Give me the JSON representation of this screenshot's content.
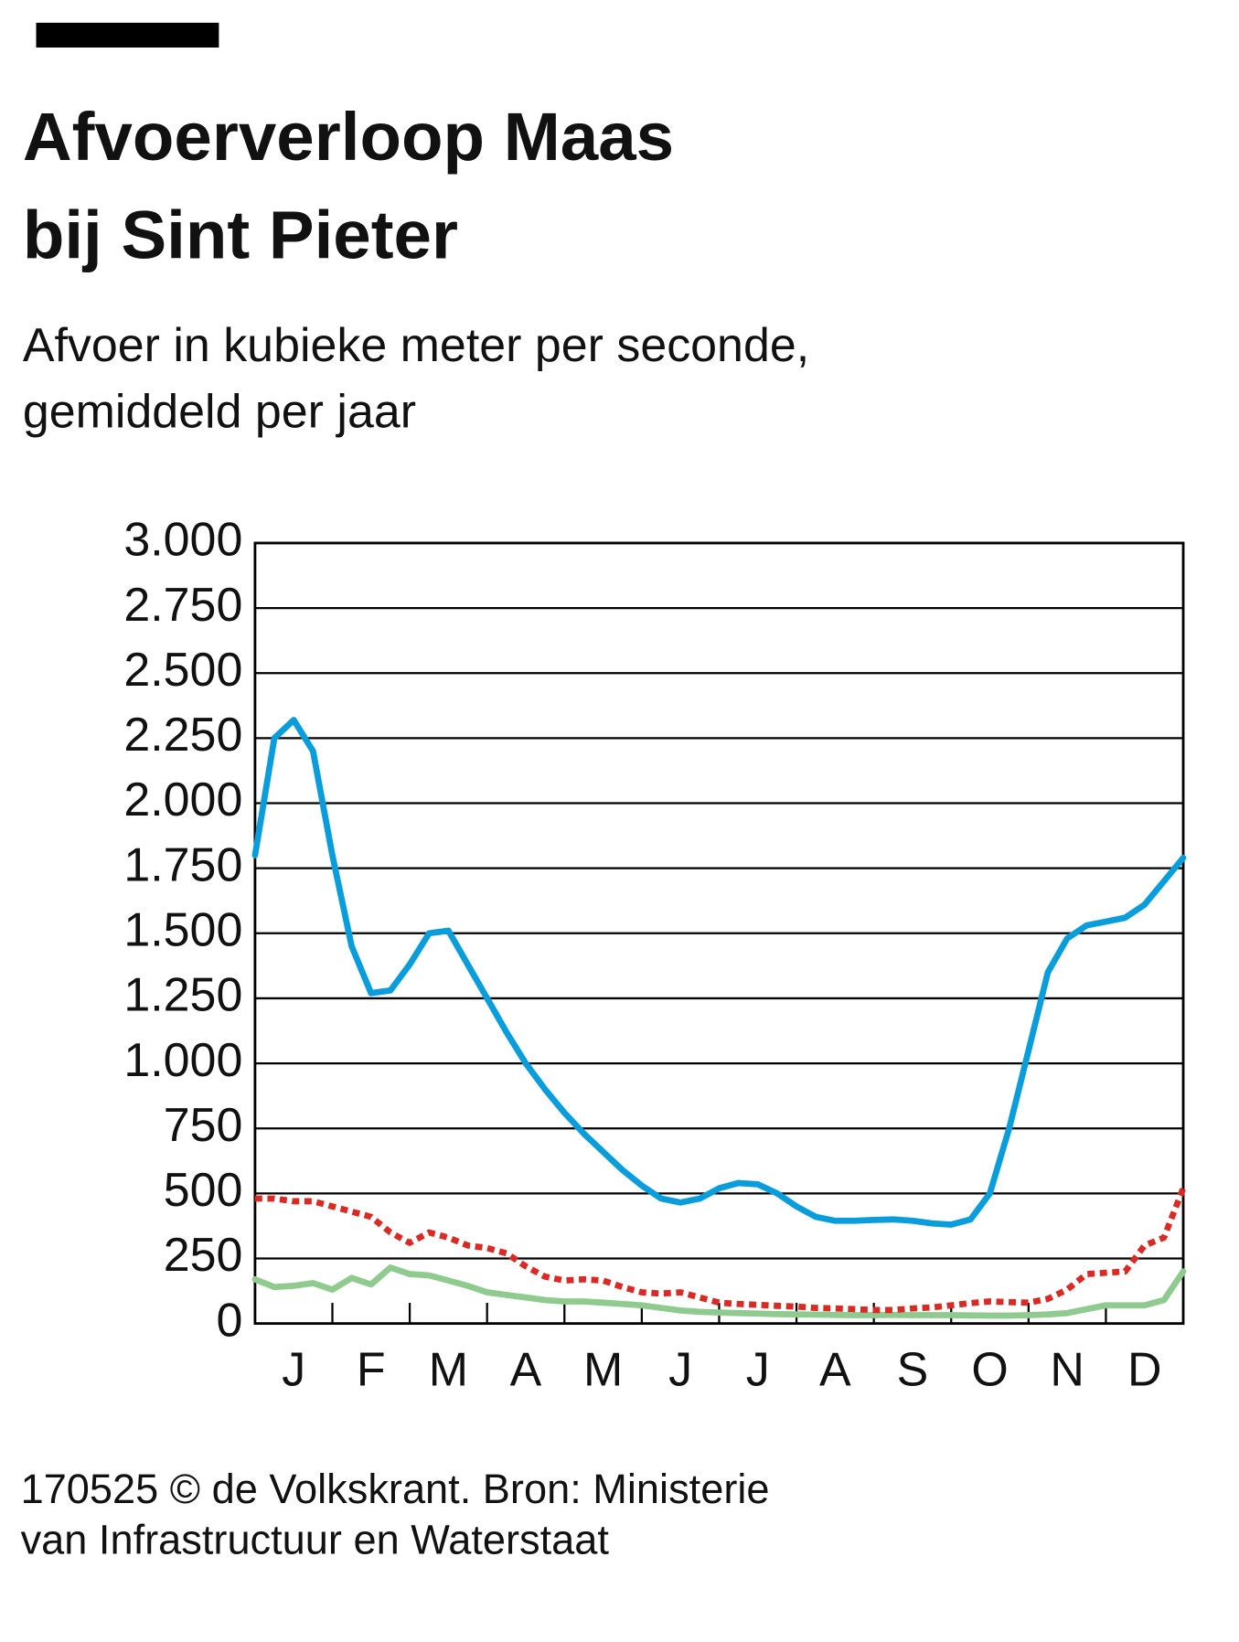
{
  "chart_data": {
    "type": "line",
    "title": [
      "Afvoerverloop Maas",
      "bij Sint Pieter"
    ],
    "subtitle": [
      "Afvoer in kubieke meter per seconde,",
      "gemiddeld per jaar"
    ],
    "source": [
      "170525 © de Volkskrant. Bron: Ministerie",
      "van Infrastructuur en Waterstaat"
    ],
    "categories": [
      null,
      null,
      "J",
      null,
      null,
      null,
      "F",
      null,
      null,
      null,
      "M",
      null,
      null,
      null,
      "A",
      null,
      null,
      null,
      "M",
      null,
      null,
      null,
      "J",
      null,
      null,
      null,
      "J",
      null,
      null,
      null,
      "A",
      null,
      null,
      null,
      "S",
      null,
      null,
      null,
      "O",
      null,
      null,
      null,
      "N",
      null,
      null,
      null,
      "D",
      null,
      null
    ],
    "series": [
      {
        "color": "#0a9ddc",
        "dash": false,
        "values": [
          1800,
          2250,
          2320,
          2200,
          1800,
          1450,
          1270,
          1280,
          1380,
          1500,
          1510,
          1380,
          1250,
          1120,
          1000,
          900,
          810,
          730,
          660,
          590,
          530,
          480,
          465,
          480,
          520,
          540,
          535,
          500,
          450,
          410,
          395,
          395,
          398,
          400,
          395,
          385,
          380,
          400,
          500,
          750,
          1050,
          1350,
          1480,
          1530,
          1545,
          1560,
          1610,
          1700,
          1790
        ]
      },
      {
        "color": "#d92a25",
        "dash": true,
        "values": [
          480,
          480,
          470,
          470,
          450,
          430,
          410,
          350,
          310,
          350,
          330,
          300,
          290,
          270,
          220,
          180,
          165,
          170,
          165,
          140,
          120,
          115,
          120,
          100,
          80,
          75,
          72,
          68,
          65,
          60,
          58,
          55,
          52,
          52,
          58,
          62,
          70,
          78,
          85,
          82,
          80,
          95,
          130,
          190,
          195,
          200,
          300,
          330,
          520
        ]
      },
      {
        "color": "#8fcb8f",
        "dash": false,
        "values": [
          170,
          140,
          145,
          155,
          130,
          175,
          150,
          215,
          190,
          185,
          165,
          145,
          120,
          110,
          100,
          90,
          85,
          85,
          80,
          75,
          70,
          60,
          50,
          45,
          42,
          40,
          38,
          36,
          35,
          34,
          33,
          32,
          32,
          33,
          32,
          32,
          32,
          31,
          30,
          30,
          32,
          35,
          40,
          55,
          70,
          70,
          70,
          90,
          200
        ]
      }
    ],
    "ylim": [
      0,
      3000
    ],
    "yticks": [
      0,
      250,
      500,
      750,
      {
        "value": 1000,
        "label": "1.000"
      },
      {
        "value": 1250,
        "label": "1.250"
      },
      {
        "value": 1500,
        "label": "1.500"
      },
      {
        "value": 1750,
        "label": "1.750"
      },
      {
        "value": 2000,
        "label": "2.000"
      },
      {
        "value": 2250,
        "label": "2.250"
      },
      {
        "value": 2500,
        "label": "2.500"
      },
      {
        "value": 2750,
        "label": "2.750"
      },
      {
        "value": 3000,
        "label": "3.000"
      }
    ],
    "grid": true
  }
}
